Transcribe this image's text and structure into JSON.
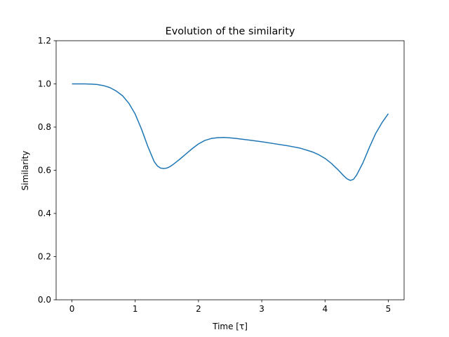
{
  "chart_data": {
    "type": "line",
    "title": "Evolution of the similarity",
    "xlabel": "Time [τ]",
    "ylabel": "Similarity",
    "xlim": [
      -0.25,
      5.25
    ],
    "ylim": [
      0.0,
      1.2
    ],
    "xticks": [
      0,
      1,
      2,
      3,
      4,
      5
    ],
    "xtick_labels": [
      "0",
      "1",
      "2",
      "3",
      "4",
      "5"
    ],
    "yticks": [
      0.0,
      0.2,
      0.4,
      0.6,
      0.8,
      1.0,
      1.2
    ],
    "ytick_labels": [
      "0.0",
      "0.2",
      "0.4",
      "0.6",
      "0.8",
      "1.0",
      "1.2"
    ],
    "grid": false,
    "series": [
      {
        "color": "#1f77b4",
        "x": [
          0,
          0.1,
          0.2,
          0.3,
          0.4,
          0.5,
          0.6,
          0.7,
          0.8,
          0.9,
          1.0,
          1.1,
          1.2,
          1.3,
          1.35,
          1.4,
          1.45,
          1.5,
          1.55,
          1.6,
          1.7,
          1.8,
          1.9,
          2.0,
          2.1,
          2.2,
          2.3,
          2.4,
          2.5,
          2.6,
          2.8,
          3.0,
          3.2,
          3.4,
          3.6,
          3.8,
          3.9,
          4.0,
          4.1,
          4.2,
          4.3,
          4.35,
          4.4,
          4.45,
          4.5,
          4.6,
          4.7,
          4.8,
          4.9,
          5.0
        ],
        "y": [
          1.0,
          1.0,
          1.0,
          0.999,
          0.997,
          0.992,
          0.983,
          0.967,
          0.945,
          0.91,
          0.86,
          0.79,
          0.71,
          0.64,
          0.62,
          0.61,
          0.608,
          0.61,
          0.617,
          0.627,
          0.65,
          0.675,
          0.7,
          0.722,
          0.738,
          0.747,
          0.751,
          0.752,
          0.75,
          0.747,
          0.74,
          0.732,
          0.723,
          0.714,
          0.703,
          0.685,
          0.672,
          0.655,
          0.632,
          0.604,
          0.573,
          0.56,
          0.553,
          0.558,
          0.578,
          0.635,
          0.705,
          0.77,
          0.82,
          0.862
        ]
      }
    ]
  }
}
